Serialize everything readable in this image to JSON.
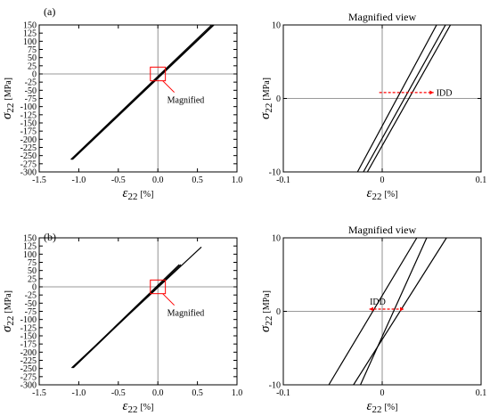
{
  "panel_labels": [
    "(a)",
    "(b)"
  ],
  "chart_data": [
    {
      "id": "a-full",
      "type": "line",
      "title": "",
      "ylabel_main": "σ",
      "ylabel_sub": "22",
      "ylabel_unit": "[MPa]",
      "xlabel_main": "ε",
      "xlabel_sub": "22",
      "xlabel_unit": "[%]",
      "xlim": [
        -1.5,
        1.0
      ],
      "ylim": [
        -300,
        150
      ],
      "xticks": [
        "-1.5",
        "-1.0",
        "-0.5",
        "0.0",
        "0.5",
        "1.0"
      ],
      "xtick_values": [
        -1.5,
        -1.0,
        -0.5,
        0.0,
        0.5,
        1.0
      ],
      "yticks": [
        "-300",
        "-275",
        "-250",
        "-225",
        "-200",
        "-175",
        "-150",
        "-125",
        "-100",
        "-75",
        "-50",
        "-25",
        "0",
        "25",
        "50",
        "75",
        "100",
        "125",
        "150"
      ],
      "ytick_values": [
        -300,
        -275,
        -250,
        -225,
        -200,
        -175,
        -150,
        -125,
        -100,
        -75,
        -50,
        -25,
        0,
        25,
        50,
        75,
        100,
        125,
        150
      ],
      "series": [
        {
          "x": [
            -1.1,
            0.68
          ],
          "y": [
            -262,
            150
          ]
        },
        {
          "x": [
            -1.09,
            0.7
          ],
          "y": [
            -262,
            150
          ]
        },
        {
          "x": [
            -1.08,
            0.71
          ],
          "y": [
            -262,
            150
          ]
        }
      ],
      "inset_box": {
        "x": [
          -0.05,
          0.05
        ],
        "y": [
          -10,
          10
        ]
      },
      "annotation": {
        "text": "Magnified",
        "from": [
          0.05,
          -10
        ],
        "to": [
          0.04,
          -25
        ]
      }
    },
    {
      "id": "a-zoom",
      "type": "line",
      "title": "Magnified view",
      "ylabel_main": "σ",
      "ylabel_sub": "22",
      "ylabel_unit": "[MPa]",
      "xlabel_main": "ε",
      "xlabel_sub": "22",
      "xlabel_unit": "[%]",
      "xlim": [
        -0.1,
        0.1
      ],
      "ylim": [
        -10,
        10
      ],
      "xticks": [
        "-0.1",
        "0",
        "0.1"
      ],
      "xtick_values": [
        -0.1,
        0,
        0.1
      ],
      "yticks": [
        "-10",
        "0",
        "10"
      ],
      "ytick_values": [
        -10,
        0,
        10
      ],
      "series": [
        {
          "x": [
            -0.025,
            0.055
          ],
          "y": [
            -10,
            10
          ]
        },
        {
          "x": [
            -0.019,
            0.064
          ],
          "y": [
            -10,
            10
          ]
        },
        {
          "x": [
            -0.015,
            0.069
          ],
          "y": [
            -10,
            10
          ]
        }
      ],
      "arrow": {
        "text": "IDD",
        "from": [
          -0.003,
          0.8
        ],
        "to": [
          0.052,
          0.8
        ],
        "heads": "end"
      }
    },
    {
      "id": "b-full",
      "type": "line",
      "title": "",
      "ylabel_main": "σ",
      "ylabel_sub": "22",
      "ylabel_unit": "[MPa]",
      "xlabel_main": "ε",
      "xlabel_sub": "22",
      "xlabel_unit": "[%]",
      "xlim": [
        -1.5,
        1.0
      ],
      "ylim": [
        -300,
        150
      ],
      "xticks": [
        "-1.5",
        "-1.0",
        "-0.5",
        "0.0",
        "0.5",
        "1.0"
      ],
      "xtick_values": [
        -1.5,
        -1.0,
        -0.5,
        0.0,
        0.5,
        1.0
      ],
      "yticks": [
        "-300",
        "-275",
        "-250",
        "-225",
        "-200",
        "-175",
        "-150",
        "-125",
        "-100",
        "-75",
        "-50",
        "-25",
        "0",
        "25",
        "50",
        "75",
        "100",
        "125",
        "150"
      ],
      "ytick_values": [
        -300,
        -275,
        -250,
        -225,
        -200,
        -175,
        -150,
        -125,
        -100,
        -75,
        -50,
        -25,
        0,
        25,
        50,
        75,
        100,
        125,
        150
      ],
      "series": [
        {
          "x": [
            -1.09,
            0.55
          ],
          "y": [
            -248,
            122
          ]
        },
        {
          "x": [
            -1.08,
            0.27
          ],
          "y": [
            -248,
            68
          ]
        },
        {
          "x": [
            -1.07,
            0.29
          ],
          "y": [
            -248,
            68
          ]
        }
      ],
      "inset_box": {
        "x": [
          -0.05,
          0.05
        ],
        "y": [
          -10,
          10
        ]
      },
      "annotation": {
        "text": "Magnified",
        "from": [
          0.05,
          -10
        ],
        "to": [
          0.04,
          -25
        ]
      }
    },
    {
      "id": "b-zoom",
      "type": "line",
      "title": "Magnified view",
      "ylabel_main": "σ",
      "ylabel_sub": "22",
      "ylabel_unit": "[MPa]",
      "xlabel_main": "ε",
      "xlabel_sub": "22",
      "xlabel_unit": "[%]",
      "xlim": [
        -0.1,
        0.1
      ],
      "ylim": [
        -10,
        10
      ],
      "xticks": [
        "-0.1",
        "0",
        "0.1"
      ],
      "xtick_values": [
        -0.1,
        0,
        0.1
      ],
      "yticks": [
        "-10",
        "0",
        "10"
      ],
      "ytick_values": [
        -10,
        0,
        10
      ],
      "series": [
        {
          "x": [
            -0.054,
            0.035
          ],
          "y": [
            -10,
            10
          ]
        },
        {
          "x": [
            -0.022,
            0.045
          ],
          "y": [
            -10,
            10
          ]
        },
        {
          "x": [
            -0.029,
            0.065
          ],
          "y": [
            -10,
            10
          ]
        }
      ],
      "arrow": {
        "text": "IDD",
        "from": [
          -0.013,
          0.3
        ],
        "to": [
          0.022,
          0.3
        ],
        "heads": "both"
      }
    }
  ],
  "colors": {
    "series": "#000000",
    "accent": "#ff0000",
    "axis": "#000000",
    "zero_line": "#777777"
  }
}
